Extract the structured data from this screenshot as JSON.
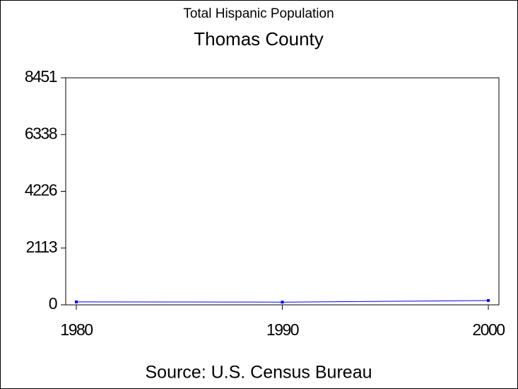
{
  "chart_data": {
    "type": "line",
    "title": "Total Hispanic Population",
    "subtitle": "Thomas County",
    "source": "Source: U.S. Census Bureau",
    "x": [
      1980,
      1990,
      2000
    ],
    "series": [
      {
        "name": "Total Hispanic Population",
        "color": "#0000ff",
        "values": [
          110,
          100,
          160
        ]
      }
    ],
    "xlim": [
      1980,
      2000
    ],
    "xticks": [
      1980,
      1990,
      2000
    ],
    "ylim": [
      0,
      8451
    ],
    "yticks": [
      0,
      2113,
      4226,
      6338,
      8451
    ],
    "grid": false
  }
}
